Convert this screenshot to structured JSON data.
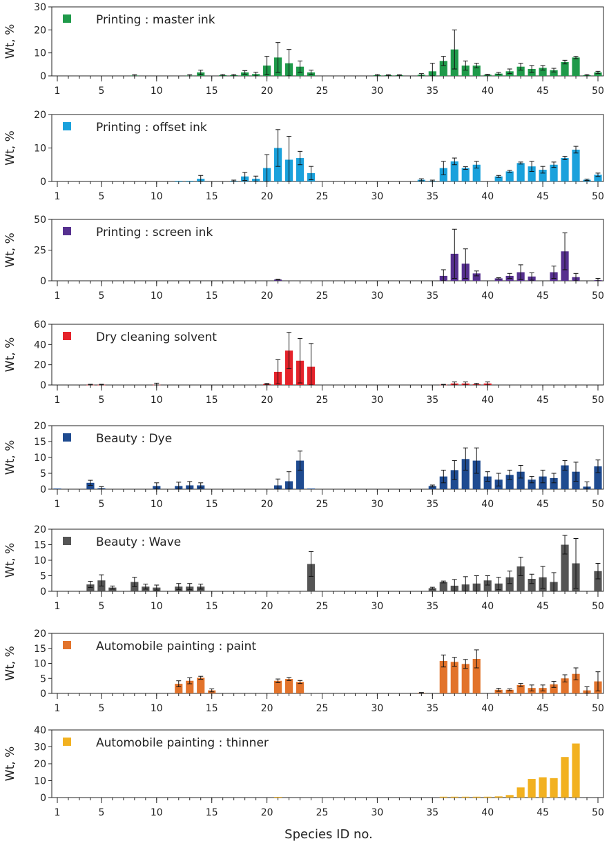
{
  "figure": {
    "xlabel": "Species ID no."
  },
  "chart_data": [
    {
      "type": "bar",
      "title": "Printing : master ink",
      "color": "#1f9a4a",
      "ylabel": "Wt, %",
      "ylim": [
        0,
        30
      ],
      "yticks": [
        0,
        10,
        20,
        30
      ],
      "xlim": [
        0.5,
        50.5
      ],
      "xticks": [
        1,
        5,
        10,
        15,
        20,
        25,
        30,
        35,
        40,
        45,
        50
      ],
      "x": [
        1,
        2,
        3,
        4,
        5,
        6,
        7,
        8,
        9,
        10,
        11,
        12,
        13,
        14,
        15,
        16,
        17,
        18,
        19,
        20,
        21,
        22,
        23,
        24,
        25,
        26,
        27,
        28,
        29,
        30,
        31,
        32,
        33,
        34,
        35,
        36,
        37,
        38,
        39,
        40,
        41,
        42,
        43,
        44,
        45,
        46,
        47,
        48,
        49,
        50
      ],
      "values": [
        0,
        0,
        0,
        0,
        0,
        0,
        0,
        0.2,
        0,
        0,
        0,
        0,
        0.2,
        1.5,
        0,
        0.3,
        0.3,
        1.5,
        0.8,
        4.5,
        8,
        5.5,
        4,
        1.5,
        0,
        0,
        0,
        0,
        0,
        0.3,
        0.3,
        0.3,
        0,
        0.5,
        2,
        6.5,
        11.5,
        4.5,
        4.5,
        0.5,
        1,
        2,
        4,
        3,
        3.5,
        2.5,
        6,
        8,
        0.3,
        1.5
      ],
      "errors": [
        0,
        0,
        0,
        0,
        0.8,
        0,
        0,
        0.3,
        0,
        0,
        0,
        0,
        0.3,
        1,
        0,
        0.3,
        0.3,
        0.8,
        0.8,
        4,
        6.5,
        6,
        2.5,
        1,
        0,
        0,
        0,
        0,
        0,
        0.3,
        0.2,
        0.2,
        0,
        0.5,
        3.5,
        2,
        8.5,
        2,
        1,
        0.2,
        0.5,
        1,
        1.5,
        1.5,
        1,
        0.8,
        0.8,
        0.5,
        0.3,
        0.5
      ]
    },
    {
      "type": "bar",
      "title": "Printing : offset ink",
      "color": "#1aa1dc",
      "ylabel": "Wt, %",
      "ylim": [
        0,
        20
      ],
      "yticks": [
        0,
        10,
        20
      ],
      "xlim": [
        0.5,
        50.5
      ],
      "xticks": [
        1,
        5,
        10,
        15,
        20,
        25,
        30,
        35,
        40,
        45,
        50
      ],
      "x": [
        1,
        2,
        3,
        4,
        5,
        6,
        7,
        8,
        9,
        10,
        11,
        12,
        13,
        14,
        15,
        16,
        17,
        18,
        19,
        20,
        21,
        22,
        23,
        24,
        25,
        26,
        27,
        28,
        29,
        30,
        31,
        32,
        33,
        34,
        35,
        36,
        37,
        38,
        39,
        40,
        41,
        42,
        43,
        44,
        45,
        46,
        47,
        48,
        49,
        50
      ],
      "values": [
        0,
        0,
        0,
        0,
        0,
        0,
        0,
        0,
        0,
        0,
        0,
        0.2,
        0.2,
        0.8,
        0,
        0,
        0.2,
        1.5,
        0.8,
        4,
        10,
        6.5,
        7,
        2.5,
        0,
        0,
        0,
        0,
        0,
        0,
        0,
        0,
        0,
        0.5,
        0.2,
        4,
        6,
        4,
        5,
        0,
        1.5,
        3,
        5.5,
        4.5,
        3.5,
        5,
        7,
        9.5,
        0.5,
        2
      ],
      "errors": [
        0,
        0,
        0,
        0,
        0,
        0,
        0,
        0,
        0,
        0,
        0,
        0,
        0,
        1,
        0,
        0,
        0.2,
        1.2,
        0.8,
        4,
        5.5,
        7,
        2,
        2,
        0,
        0,
        0,
        0,
        0,
        0,
        0,
        0,
        0,
        0.3,
        0.2,
        2,
        1,
        0.4,
        1,
        0,
        0.3,
        0.3,
        0.3,
        1.5,
        1,
        0.8,
        0.5,
        1,
        0.2,
        0.5
      ]
    },
    {
      "type": "bar",
      "title": "Printing : screen ink",
      "color": "#56308f",
      "ylabel": "Wt, %",
      "ylim": [
        0,
        50
      ],
      "yticks": [
        0,
        25,
        50
      ],
      "xlim": [
        0.5,
        50.5
      ],
      "xticks": [
        1,
        5,
        10,
        15,
        20,
        25,
        30,
        35,
        40,
        45,
        50
      ],
      "x": [
        1,
        2,
        3,
        4,
        5,
        6,
        7,
        8,
        9,
        10,
        11,
        12,
        13,
        14,
        15,
        16,
        17,
        18,
        19,
        20,
        21,
        22,
        23,
        24,
        25,
        26,
        27,
        28,
        29,
        30,
        31,
        32,
        33,
        34,
        35,
        36,
        37,
        38,
        39,
        40,
        41,
        42,
        43,
        44,
        45,
        46,
        47,
        48,
        49,
        50
      ],
      "values": [
        0,
        0,
        0,
        0,
        0,
        0,
        0,
        0,
        0,
        0,
        0,
        0,
        0,
        0,
        0,
        0,
        0,
        0,
        0,
        0,
        1,
        0,
        0,
        0,
        0,
        0,
        0,
        0,
        0,
        0,
        0,
        0,
        0,
        0,
        0,
        4,
        22,
        14,
        6,
        0,
        2,
        4,
        7,
        3.5,
        0,
        7,
        24,
        3,
        0,
        0.5
      ],
      "errors": [
        0,
        0,
        0,
        0,
        0,
        0,
        0,
        0,
        0,
        0,
        0,
        0,
        0,
        0,
        0,
        0,
        0,
        0,
        0,
        0,
        0.3,
        0,
        0,
        0,
        0,
        0,
        0,
        0,
        0,
        0,
        0,
        0,
        0,
        0,
        0,
        5,
        20,
        12,
        2,
        0,
        0.5,
        2,
        6,
        3,
        0,
        5,
        15,
        3,
        0,
        1.5
      ]
    },
    {
      "type": "bar",
      "title": "Dry cleaning solvent",
      "color": "#e5232b",
      "ylabel": "Wt, %",
      "ylim": [
        0,
        60
      ],
      "yticks": [
        0,
        20,
        40,
        60
      ],
      "xlim": [
        0.5,
        50.5
      ],
      "xticks": [
        1,
        5,
        10,
        15,
        20,
        25,
        30,
        35,
        40,
        45,
        50
      ],
      "x": [
        1,
        2,
        3,
        4,
        5,
        6,
        7,
        8,
        9,
        10,
        11,
        12,
        13,
        14,
        15,
        16,
        17,
        18,
        19,
        20,
        21,
        22,
        23,
        24,
        25,
        26,
        27,
        28,
        29,
        30,
        31,
        32,
        33,
        34,
        35,
        36,
        37,
        38,
        39,
        40,
        41,
        42,
        43,
        44,
        45,
        46,
        47,
        48,
        49,
        50
      ],
      "values": [
        0,
        0,
        0,
        0.2,
        0.2,
        0,
        0,
        0,
        0,
        0.3,
        0,
        0,
        0,
        0,
        0,
        0,
        0,
        0,
        0,
        1,
        13,
        34,
        24,
        18,
        0,
        0,
        0,
        0,
        0,
        0,
        0,
        0,
        0,
        0,
        0,
        0.3,
        1.5,
        1.5,
        0.8,
        1.5,
        0,
        0,
        0,
        0,
        0,
        0,
        0,
        0,
        0,
        0
      ],
      "errors": [
        0,
        0,
        0,
        0.5,
        0.5,
        0,
        0,
        0,
        0,
        1.5,
        0,
        0,
        0,
        0,
        0,
        0,
        0,
        0,
        0,
        0.5,
        12,
        18,
        22,
        23,
        0,
        0,
        0,
        0,
        0,
        0,
        0,
        0,
        0,
        0,
        0,
        0.3,
        1.5,
        1.5,
        0.8,
        1.5,
        0,
        0,
        0,
        0,
        0,
        0,
        0,
        0,
        0,
        0
      ]
    },
    {
      "type": "bar",
      "title": "Beauty : Dye",
      "color": "#1f4b90",
      "ylabel": "Wt, %",
      "ylim": [
        0,
        20
      ],
      "yticks": [
        0,
        5,
        10,
        15,
        20
      ],
      "xlim": [
        0.5,
        50.5
      ],
      "xticks": [
        1,
        5,
        10,
        15,
        20,
        25,
        30,
        35,
        40,
        45,
        50
      ],
      "x": [
        1,
        2,
        3,
        4,
        5,
        6,
        7,
        8,
        9,
        10,
        11,
        12,
        13,
        14,
        15,
        16,
        17,
        18,
        19,
        20,
        21,
        22,
        23,
        24,
        25,
        26,
        27,
        28,
        29,
        30,
        31,
        32,
        33,
        34,
        35,
        36,
        37,
        38,
        39,
        40,
        41,
        42,
        43,
        44,
        45,
        46,
        47,
        48,
        49,
        50
      ],
      "values": [
        0.2,
        0,
        0,
        2,
        0.3,
        0,
        0,
        0,
        0,
        1,
        0,
        1,
        1.2,
        1.2,
        0,
        0,
        0,
        0,
        0,
        0,
        1.2,
        2.5,
        9,
        0.2,
        0,
        0,
        0,
        0,
        0,
        0,
        0,
        0,
        0,
        0,
        1,
        4,
        6,
        9.5,
        9,
        4,
        3,
        4.5,
        5.5,
        3,
        4,
        3.5,
        7.5,
        5.5,
        0.8,
        7.2
      ],
      "errors": [
        0,
        0,
        0,
        0.8,
        0.5,
        0,
        0,
        0,
        0,
        1,
        0,
        1.2,
        1.2,
        0.8,
        0,
        0,
        0,
        0,
        0,
        0,
        2,
        3,
        3,
        0,
        0,
        0,
        0,
        0,
        0,
        0,
        0,
        0,
        0,
        0,
        0.3,
        2,
        3,
        3.5,
        4,
        1.5,
        2,
        1.5,
        2,
        1,
        2,
        1.5,
        1.5,
        3,
        1.5,
        2
      ]
    },
    {
      "type": "bar",
      "title": "Beauty : Wave",
      "color": "#555555",
      "ylabel": "Wt, %",
      "ylim": [
        0,
        20
      ],
      "yticks": [
        0,
        5,
        10,
        15,
        20
      ],
      "xlim": [
        0.5,
        50.5
      ],
      "xticks": [
        1,
        5,
        10,
        15,
        20,
        25,
        30,
        35,
        40,
        45,
        50
      ],
      "x": [
        1,
        2,
        3,
        4,
        5,
        6,
        7,
        8,
        9,
        10,
        11,
        12,
        13,
        14,
        15,
        16,
        17,
        18,
        19,
        20,
        21,
        22,
        23,
        24,
        25,
        26,
        27,
        28,
        29,
        30,
        31,
        32,
        33,
        34,
        35,
        36,
        37,
        38,
        39,
        40,
        41,
        42,
        43,
        44,
        45,
        46,
        47,
        48,
        49,
        50
      ],
      "values": [
        0,
        0,
        0,
        2.2,
        3.5,
        1.2,
        0,
        3,
        1.5,
        1.2,
        0,
        1.5,
        1.5,
        1.5,
        0,
        0,
        0,
        0,
        0,
        0,
        0,
        0,
        0,
        8.8,
        0,
        0,
        0,
        0,
        0,
        0,
        0,
        0,
        0,
        0,
        1,
        3,
        1.8,
        2.2,
        2.5,
        3.5,
        2.5,
        4.5,
        8,
        4,
        4.5,
        3,
        15,
        9,
        0,
        6.5
      ],
      "errors": [
        0,
        0,
        0,
        1,
        1.8,
        0.5,
        0,
        1.5,
        0.8,
        0.8,
        0,
        1,
        1,
        0.8,
        0,
        0,
        0,
        0,
        0,
        0,
        0,
        0,
        0,
        4,
        0,
        0,
        0,
        0,
        0,
        0,
        0,
        0,
        0,
        0,
        0.3,
        0.3,
        2,
        2.5,
        2.5,
        1.5,
        2,
        2,
        3,
        1.5,
        3.5,
        3,
        3,
        8,
        0,
        2.5
      ]
    },
    {
      "type": "bar",
      "title": "Automobile painting : paint",
      "color": "#e2732b",
      "ylabel": "Wt, %",
      "ylim": [
        0,
        20
      ],
      "yticks": [
        0,
        5,
        10,
        15,
        20
      ],
      "xlim": [
        0.5,
        50.5
      ],
      "xticks": [
        1,
        5,
        10,
        15,
        20,
        25,
        30,
        35,
        40,
        45,
        50
      ],
      "x": [
        1,
        2,
        3,
        4,
        5,
        6,
        7,
        8,
        9,
        10,
        11,
        12,
        13,
        14,
        15,
        16,
        17,
        18,
        19,
        20,
        21,
        22,
        23,
        24,
        25,
        26,
        27,
        28,
        29,
        30,
        31,
        32,
        33,
        34,
        35,
        36,
        37,
        38,
        39,
        40,
        41,
        42,
        43,
        44,
        45,
        46,
        47,
        48,
        49,
        50
      ],
      "values": [
        0,
        0,
        0,
        0,
        0,
        0,
        0,
        0,
        0,
        0,
        0,
        3.2,
        4.2,
        5.2,
        1,
        0,
        0,
        0,
        0,
        0,
        4.2,
        4.8,
        3.8,
        0,
        0,
        0,
        0,
        0,
        0,
        0,
        0,
        0,
        0,
        0.2,
        0,
        10.8,
        10.5,
        9.8,
        11.5,
        0,
        1.2,
        1.2,
        2.8,
        1.8,
        1.8,
        3,
        5,
        6.5,
        1,
        4
      ],
      "errors": [
        0,
        0,
        0,
        0,
        0,
        0,
        0,
        0,
        0,
        0,
        0,
        1,
        1,
        0.5,
        0.5,
        0,
        0,
        0,
        0,
        0,
        0.6,
        0.5,
        0.5,
        0,
        0,
        0,
        0,
        0,
        0,
        0,
        0,
        0,
        0,
        0.1,
        0,
        2,
        1.5,
        1.5,
        3,
        0,
        0.5,
        0.3,
        0.5,
        1,
        1,
        1,
        1.2,
        2,
        1.2,
        3.2
      ]
    },
    {
      "type": "bar",
      "title": "Automobile painting : thinner",
      "color": "#f2b120",
      "ylabel": "Wt, %",
      "ylim": [
        0,
        40
      ],
      "yticks": [
        0,
        10,
        20,
        30,
        40
      ],
      "xlim": [
        0.5,
        50.5
      ],
      "xticks": [
        1,
        5,
        10,
        15,
        20,
        25,
        30,
        35,
        40,
        45,
        50
      ],
      "x": [
        1,
        2,
        3,
        4,
        5,
        6,
        7,
        8,
        9,
        10,
        11,
        12,
        13,
        14,
        15,
        16,
        17,
        18,
        19,
        20,
        21,
        22,
        23,
        24,
        25,
        26,
        27,
        28,
        29,
        30,
        31,
        32,
        33,
        34,
        35,
        36,
        37,
        38,
        39,
        40,
        41,
        42,
        43,
        44,
        45,
        46,
        47,
        48,
        49,
        50
      ],
      "values": [
        0,
        0,
        0,
        0,
        0,
        0,
        0,
        0,
        0,
        0,
        0,
        0,
        0,
        0,
        0,
        0,
        0,
        0,
        0,
        0,
        0.4,
        0,
        0,
        0,
        0,
        0,
        0,
        0,
        0,
        0,
        0,
        0,
        0,
        0,
        0,
        0.5,
        0.5,
        0.5,
        0.5,
        0.5,
        0.7,
        1.5,
        6,
        11,
        12,
        11.5,
        24,
        32,
        0,
        0
      ],
      "errors": []
    }
  ]
}
